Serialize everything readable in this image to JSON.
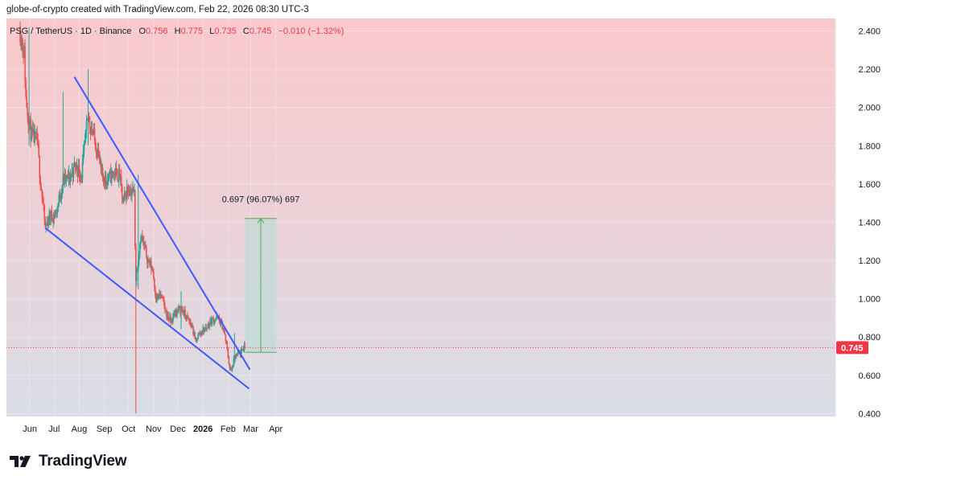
{
  "caption": "globe-of-crypto created with TradingView.com, Feb 22, 2026 08:30 UTC-3",
  "brand": "TradingView",
  "colors": {
    "up": "#26a69a",
    "down": "#ef5350",
    "trendline": "#3d5afe",
    "target": "#4caf50",
    "price_tag": "#f23645"
  },
  "legend": {
    "symbol": "PSG / TetherUS · 1D · Binance",
    "o_label": "O",
    "o_value": "0.756",
    "h_label": "H",
    "h_value": "0.775",
    "l_label": "L",
    "l_value": "0.735",
    "c_label": "C",
    "c_value": "0.745",
    "change": "−0.010 (−1.32%)"
  },
  "chart_data": {
    "type": "candlestick",
    "title": "PSG / TetherUS · 1D · Binance",
    "x_ticks": [
      "Jun",
      "Jul",
      "Aug",
      "Sep",
      "Oct",
      "Nov",
      "Dec",
      "2026",
      "Feb",
      "Mar",
      "Apr"
    ],
    "y_ticks": [
      "2.400",
      "2.200",
      "2.000",
      "1.800",
      "1.600",
      "1.400",
      "1.200",
      "1.000",
      "0.800",
      "0.600",
      "0.400"
    ],
    "ylim": [
      0.4,
      2.45
    ],
    "last_price": "0.745",
    "grid": true,
    "path_points": [
      [
        "2025-05-20",
        2.4
      ],
      [
        "2025-05-25",
        2.28
      ],
      [
        "2025-05-27",
        2.05
      ],
      [
        "2025-05-31",
        1.92
      ],
      [
        "2025-06-03",
        1.85
      ],
      [
        "2025-06-10",
        1.82
      ],
      [
        "2025-06-14",
        1.62
      ],
      [
        "2025-06-18",
        1.45
      ],
      [
        "2025-06-20",
        1.37
      ],
      [
        "2025-06-25",
        1.43
      ],
      [
        "2025-07-03",
        1.44
      ],
      [
        "2025-07-07",
        1.52
      ],
      [
        "2025-07-12",
        1.62
      ],
      [
        "2025-07-20",
        1.63
      ],
      [
        "2025-07-27",
        1.7
      ],
      [
        "2025-08-04",
        1.65
      ],
      [
        "2025-08-09",
        1.85
      ],
      [
        "2025-08-12",
        1.95
      ],
      [
        "2025-08-17",
        1.88
      ],
      [
        "2025-08-25",
        1.75
      ],
      [
        "2025-08-28",
        1.65
      ],
      [
        "2025-09-04",
        1.62
      ],
      [
        "2025-09-13",
        1.66
      ],
      [
        "2025-09-20",
        1.64
      ],
      [
        "2025-09-24",
        1.5
      ],
      [
        "2025-09-30",
        1.58
      ],
      [
        "2025-10-08",
        1.55
      ],
      [
        "2025-10-09",
        1.3
      ],
      [
        "2025-10-10",
        1.1
      ],
      [
        "2025-10-13",
        1.22
      ],
      [
        "2025-10-16",
        1.33
      ],
      [
        "2025-10-21",
        1.26
      ],
      [
        "2025-10-25",
        1.2
      ],
      [
        "2025-10-31",
        1.15
      ],
      [
        "2025-11-04",
        1.0
      ],
      [
        "2025-11-10",
        1.02
      ],
      [
        "2025-11-16",
        0.93
      ],
      [
        "2025-11-22",
        0.88
      ],
      [
        "2025-11-28",
        0.93
      ],
      [
        "2025-12-05",
        0.95
      ],
      [
        "2025-12-12",
        0.9
      ],
      [
        "2025-12-19",
        0.85
      ],
      [
        "2025-12-22",
        0.78
      ],
      [
        "2025-12-28",
        0.82
      ],
      [
        "2026-01-05",
        0.85
      ],
      [
        "2026-01-12",
        0.89
      ],
      [
        "2026-01-19",
        0.9
      ],
      [
        "2026-01-26",
        0.85
      ],
      [
        "2026-01-30",
        0.76
      ],
      [
        "2026-02-03",
        0.64
      ],
      [
        "2026-02-05",
        0.62
      ],
      [
        "2026-02-09",
        0.69
      ],
      [
        "2026-02-14",
        0.71
      ],
      [
        "2026-02-18",
        0.72
      ],
      [
        "2026-02-21",
        0.76
      ],
      [
        "2026-02-22",
        0.745
      ]
    ],
    "events": [
      {
        "date": "2025-10-10",
        "low": 0.4,
        "high": 1.2
      },
      {
        "date": "2025-10-13",
        "low": 1.05,
        "high": 1.65
      },
      {
        "date": "2025-08-12",
        "low": 1.8,
        "high": 2.2
      },
      {
        "date": "2025-07-12",
        "low": 1.55,
        "high": 2.08
      },
      {
        "date": "2025-05-31",
        "low": 1.8,
        "high": 2.42
      },
      {
        "date": "2025-12-05",
        "low": 0.84,
        "high": 1.04
      },
      {
        "date": "2026-02-09",
        "low": 0.66,
        "high": 0.82
      }
    ],
    "trendlines": [
      {
        "from": [
          "2025-07-26",
          2.16
        ],
        "to": [
          "2026-02-28",
          0.63
        ]
      },
      {
        "from": [
          "2025-06-20",
          1.37
        ],
        "to": [
          "2026-02-27",
          0.53
        ]
      }
    ],
    "projection": {
      "from_date": "2026-02-22",
      "to_date": "2026-04-02",
      "low": 0.72,
      "high": 1.42,
      "label": "0.697 (96.07%) 697"
    }
  }
}
